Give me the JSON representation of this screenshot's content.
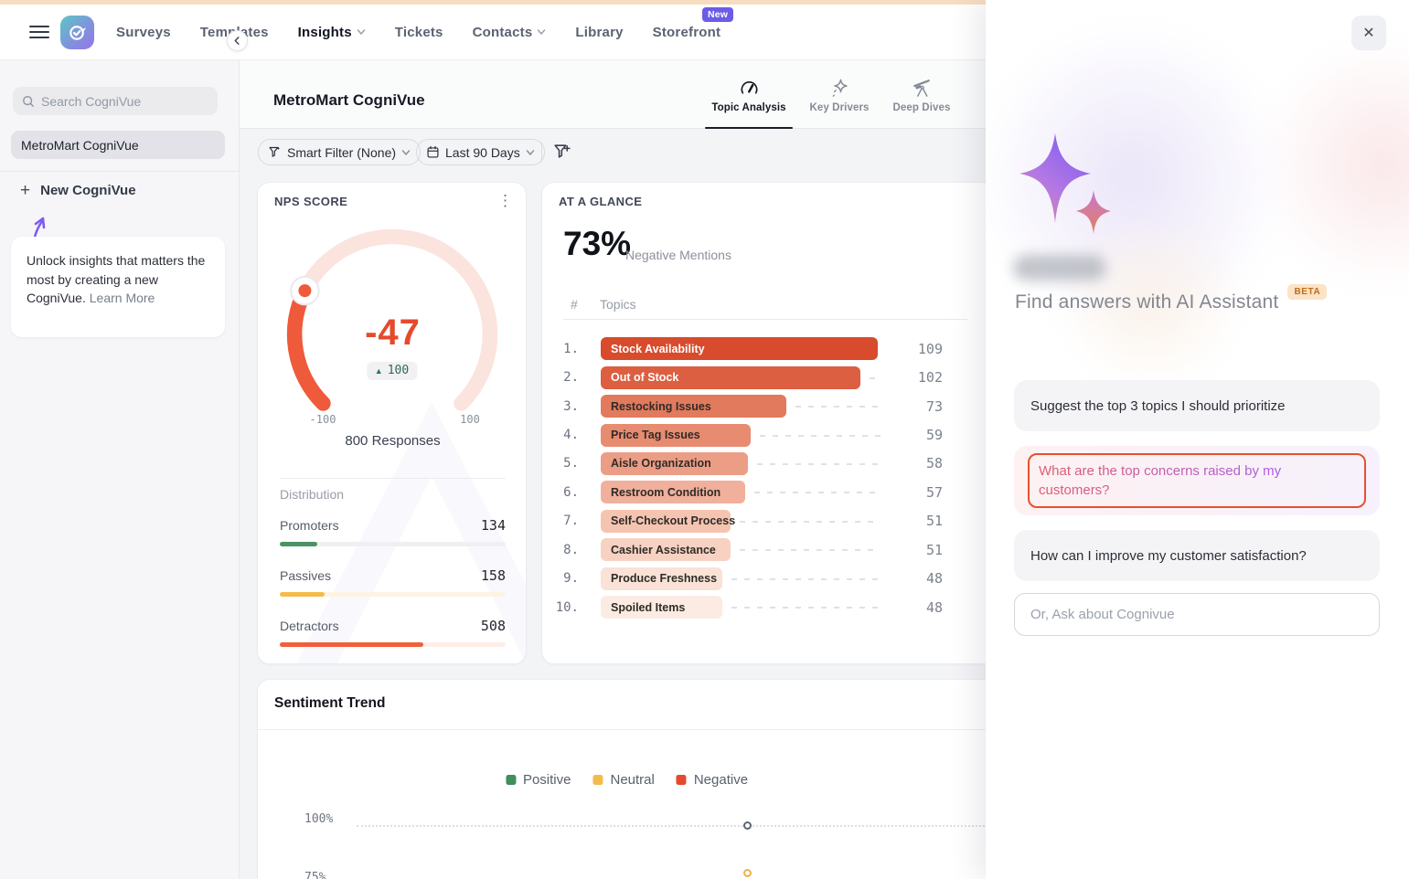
{
  "topnav": {
    "items": [
      {
        "label": "Surveys"
      },
      {
        "label": "Templates"
      },
      {
        "label": "Insights",
        "active": true,
        "chevron": true
      },
      {
        "label": "Tickets"
      },
      {
        "label": "Contacts",
        "chevron": true
      },
      {
        "label": "Library"
      },
      {
        "label": "Storefront",
        "badge": "New"
      }
    ]
  },
  "sidebar": {
    "search_placeholder": "Search CogniVue",
    "selected_item": "MetroMart CogniVue",
    "new_button": "New CogniVue",
    "promo_text": "Unlock insights that matters the most by creating a new CogniVue. ",
    "promo_link": "Learn More"
  },
  "main": {
    "title": "MetroMart CogniVue",
    "tabs": [
      {
        "label": "Topic Analysis",
        "icon": "gauge-icon",
        "active": true
      },
      {
        "label": "Key Drivers",
        "icon": "sparkles-icon",
        "active": false
      },
      {
        "label": "Deep Dives",
        "icon": "telescope-icon",
        "active": false
      }
    ],
    "filters": {
      "smart_filter": "Smart Filter (None)",
      "date_range": "Last 90 Days"
    }
  },
  "nps": {
    "title": "NPS SCORE",
    "score": "-47",
    "delta": "100",
    "delta_color": "#1f7d52",
    "gauge_min": "-100",
    "gauge_max": "100",
    "gauge_fill_color": "#ef5a3a",
    "gauge_track_color": "#fbe4dd",
    "responses": "800 Responses",
    "distribution": {
      "heading": "Distribution",
      "total": 800,
      "rows": [
        {
          "label": "Promoters",
          "value": 134,
          "color": "#4c9363",
          "track": "#f0f0f2"
        },
        {
          "label": "Passives",
          "value": 158,
          "color": "#f5bb4a",
          "track": "#fdf3e2"
        },
        {
          "label": "Detractors",
          "value": 508,
          "color": "#ef5f3c",
          "track": "#fdeee7"
        }
      ]
    }
  },
  "glance": {
    "title": "AT A GLANCE",
    "metric": "73%",
    "metric_label": "Negative Mentions",
    "rank_header": "#",
    "topics_header": "Topics",
    "topics": [
      {
        "rank": "1.",
        "label": "Stock Availability",
        "value": 109,
        "bar_color": "#d84b2c",
        "label_color": "#ffffff"
      },
      {
        "rank": "2.",
        "label": "Out of Stock",
        "value": 102,
        "bar_color": "#dc5f41",
        "label_color": "#ffffff"
      },
      {
        "rank": "3.",
        "label": "Restocking Issues",
        "value": 73,
        "bar_color": "#e27a5d",
        "label_color": "#2f2b27"
      },
      {
        "rank": "4.",
        "label": "Price Tag Issues",
        "value": 59,
        "bar_color": "#e78b71",
        "label_color": "#2f2b27"
      },
      {
        "rank": "5.",
        "label": "Aisle Organization",
        "value": 58,
        "bar_color": "#ec9d86",
        "label_color": "#2f2b27"
      },
      {
        "rank": "6.",
        "label": "Restroom Condition",
        "value": 57,
        "bar_color": "#f0b09b",
        "label_color": "#2f2b27"
      },
      {
        "rank": "7.",
        "label": "Self-Checkout Process",
        "value": 51,
        "bar_color": "#f5c4b1",
        "label_color": "#2f2b27"
      },
      {
        "rank": "8.",
        "label": "Cashier Assistance",
        "value": 51,
        "bar_color": "#f7d2c2",
        "label_color": "#2f2b27"
      },
      {
        "rank": "9.",
        "label": "Produce Freshness",
        "value": 48,
        "bar_color": "#fae2d6",
        "label_color": "#2f2b27"
      },
      {
        "rank": "10.",
        "label": "Spoiled Items",
        "value": 48,
        "bar_color": "#fcebe2",
        "label_color": "#2f2b27"
      }
    ]
  },
  "sentiment": {
    "title": "Sentiment Trend",
    "legend": [
      {
        "label": "Positive",
        "color": "#3f8f5e"
      },
      {
        "label": "Neutral",
        "color": "#f2bc4d"
      },
      {
        "label": "Negative",
        "color": "#e24b2e"
      }
    ],
    "y_ticks": [
      "100%",
      "75%"
    ],
    "visible_points": [
      {
        "at_tick": "100%",
        "color": "#5d6672"
      },
      {
        "at_tick": "~77%",
        "color": "#edb14c"
      }
    ]
  },
  "assistant": {
    "heading": "Find answers with AI Assistant",
    "beta_label": "BETA",
    "suggestions": [
      {
        "text": "Suggest the top 3 topics I should prioritize",
        "highlighted": false
      },
      {
        "text": "What are the top concerns raised by my customers?",
        "highlighted": true
      },
      {
        "text": "How can I improve my customer satisfaction?",
        "highlighted": false
      }
    ],
    "input_placeholder": "Or, Ask about Cognivue"
  }
}
